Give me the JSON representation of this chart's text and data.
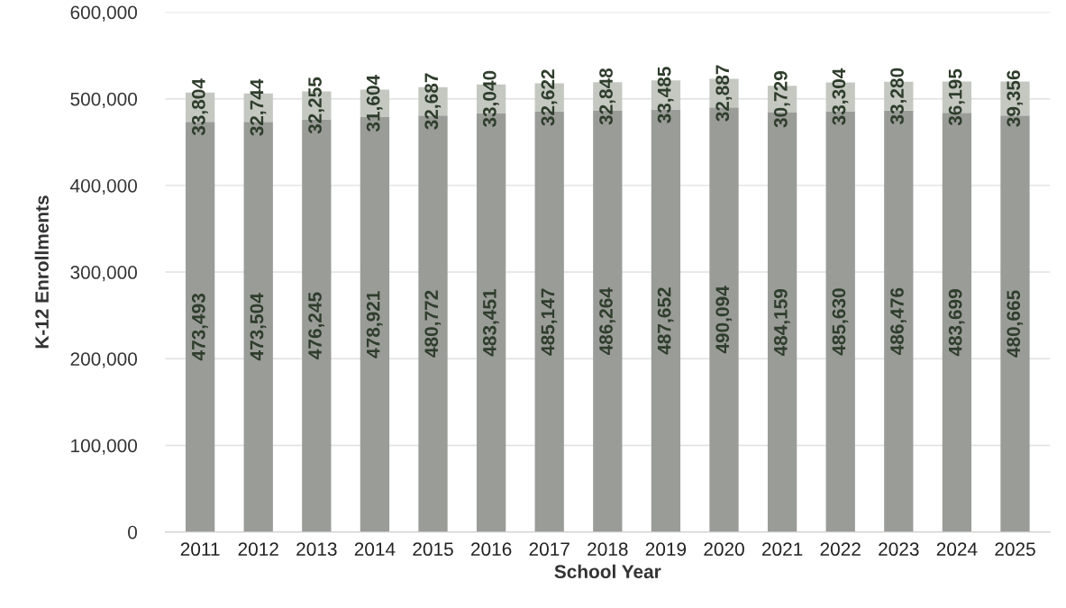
{
  "chart_data": {
    "type": "bar",
    "stacked": true,
    "xlabel": "School Year",
    "ylabel": "K-12 Enrollments",
    "categories": [
      "2011",
      "2012",
      "2013",
      "2014",
      "2015",
      "2016",
      "2017",
      "2018",
      "2019",
      "2020",
      "2021",
      "2022",
      "2023",
      "2024",
      "2025"
    ],
    "series": [
      {
        "color": "#9a9c98",
        "values": [
          473493,
          473504,
          476245,
          478921,
          480772,
          483451,
          485147,
          486264,
          487652,
          490094,
          484159,
          485630,
          486476,
          483699,
          480665
        ],
        "value_labels": [
          "473,493",
          "473,504",
          "476,245",
          "478,921",
          "480,772",
          "483,451",
          "485,147",
          "486,264",
          "487,652",
          "490,094",
          "484,159",
          "485,630",
          "486,476",
          "483,699",
          "480,665"
        ]
      },
      {
        "color": "#c4c8c1",
        "values": [
          33804,
          32744,
          32255,
          31604,
          32687,
          33040,
          32622,
          32848,
          33485,
          32887,
          30729,
          33304,
          33280,
          36195,
          39356
        ],
        "value_labels": [
          "33,804",
          "32,744",
          "32,255",
          "31,604",
          "32,687",
          "33,040",
          "32,622",
          "32,848",
          "33,485",
          "32,887",
          "30,729",
          "33,304",
          "33,280",
          "36,195",
          "39,356"
        ]
      }
    ],
    "ylim": [
      0,
      600000
    ],
    "yticks": [
      0,
      {
        "value": 100000,
        "label": "100,000"
      },
      {
        "value": 200000,
        "label": "200,000"
      },
      {
        "value": 300000,
        "label": "300,000"
      },
      {
        "value": 400000,
        "label": "400,000"
      },
      {
        "value": 500000,
        "label": "500,000"
      },
      {
        "value": 600000,
        "label": "600,000"
      }
    ],
    "grid": "y"
  }
}
